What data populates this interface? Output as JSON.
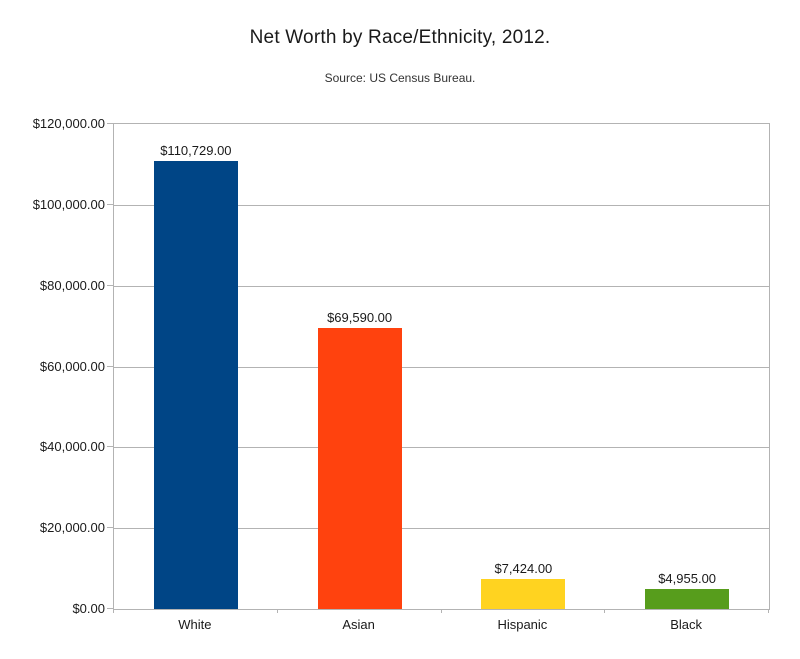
{
  "page": {
    "background": "#ffffff"
  },
  "chart_data": {
    "type": "bar",
    "title": "Net Worth by Race/Ethnicity, 2012.",
    "subtitle": "Source: US Census Bureau.",
    "categories": [
      "White",
      "Asian",
      "Hispanic",
      "Black"
    ],
    "values": [
      110729,
      69590,
      7424,
      4955
    ],
    "value_labels": [
      "$110,729.00",
      "$69,590.00",
      "$7,424.00",
      "$4,955.00"
    ],
    "bar_colors": [
      "#004586",
      "#FF420E",
      "#FFD320",
      "#579D1C"
    ],
    "xlabel": "",
    "ylabel": "",
    "ylim": [
      0,
      120000
    ],
    "y_ticks": [
      {
        "value": 120000,
        "label": "$120,000.00"
      },
      {
        "value": 100000,
        "label": "$100,000.00"
      },
      {
        "value": 80000,
        "label": "$80,000.00"
      },
      {
        "value": 60000,
        "label": "$60,000.00"
      },
      {
        "value": 40000,
        "label": "$40,000.00"
      },
      {
        "value": 20000,
        "label": "$20,000.00"
      },
      {
        "value": 0,
        "label": "$0.00"
      }
    ],
    "grid": "horizontal",
    "legend": "none",
    "colors": {
      "grid": "#b3b3b3",
      "axis": "#b3b3b3",
      "text": "#1a1a1a",
      "subtitle_text": "#333333",
      "background": "#ffffff"
    }
  }
}
